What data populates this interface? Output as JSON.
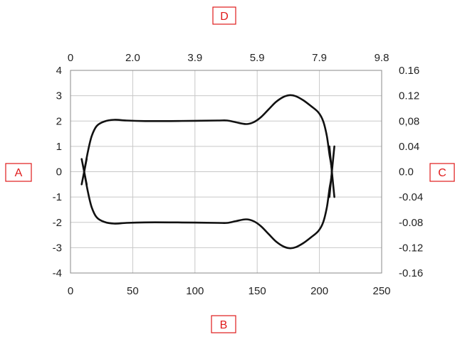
{
  "chart_data": {
    "type": "line",
    "grid": true,
    "legend": "none",
    "colors": {
      "line": "#111111",
      "grid": "#c8c8c8",
      "axis": "#888888",
      "label_box": "#e01a1a",
      "label_text": "#e01a1a"
    },
    "axis_labels": {
      "left": "A",
      "bottom": "B",
      "right": "C",
      "top": "D"
    },
    "x_bottom": {
      "range": [
        0,
        250
      ],
      "ticks": [
        "0",
        "50",
        "100",
        "150",
        "200",
        "250"
      ]
    },
    "x_top": {
      "ticks": [
        "0",
        "2.0",
        "3.9",
        "5.9",
        "7.9",
        "9.8"
      ]
    },
    "y_left": {
      "range": [
        -4,
        4
      ],
      "ticks": [
        "4",
        "3",
        "2",
        "1",
        "0",
        "-1",
        "-2",
        "-3",
        "-4"
      ]
    },
    "y_right": {
      "range": [
        -0.16,
        0.16
      ],
      "ticks": [
        "0.16",
        "0.12",
        "0,08",
        "0.04",
        "0.0",
        "-0.04",
        "-0.08",
        "-0.12",
        "-0.16"
      ]
    },
    "series": [
      {
        "points": [
          [
            11,
            0.0
          ],
          [
            14,
            0.8
          ],
          [
            17,
            1.4
          ],
          [
            21,
            1.8
          ],
          [
            27,
            1.98
          ],
          [
            35,
            2.05
          ],
          [
            45,
            2.02
          ],
          [
            60,
            2.0
          ],
          [
            80,
            2.0
          ],
          [
            100,
            2.01
          ],
          [
            118,
            2.02
          ],
          [
            126,
            2.02
          ],
          [
            133,
            1.95
          ],
          [
            141,
            1.88
          ],
          [
            147,
            1.95
          ],
          [
            153,
            2.15
          ],
          [
            159,
            2.45
          ],
          [
            165,
            2.75
          ],
          [
            171,
            2.95
          ],
          [
            176,
            3.02
          ],
          [
            181,
            2.98
          ],
          [
            187,
            2.82
          ],
          [
            193,
            2.6
          ],
          [
            199,
            2.35
          ],
          [
            203,
            2.0
          ],
          [
            206,
            1.4
          ],
          [
            208,
            0.7
          ],
          [
            210,
            0.0
          ],
          [
            208,
            -0.7
          ],
          [
            206,
            -1.4
          ],
          [
            203,
            -2.0
          ],
          [
            199,
            -2.35
          ],
          [
            193,
            -2.6
          ],
          [
            187,
            -2.82
          ],
          [
            181,
            -2.98
          ],
          [
            176,
            -3.02
          ],
          [
            171,
            -2.95
          ],
          [
            165,
            -2.75
          ],
          [
            159,
            -2.45
          ],
          [
            153,
            -2.15
          ],
          [
            147,
            -1.95
          ],
          [
            141,
            -1.88
          ],
          [
            133,
            -1.95
          ],
          [
            126,
            -2.02
          ],
          [
            118,
            -2.02
          ],
          [
            100,
            -2.01
          ],
          [
            80,
            -2.0
          ],
          [
            60,
            -2.0
          ],
          [
            45,
            -2.02
          ],
          [
            35,
            -2.05
          ],
          [
            27,
            -1.98
          ],
          [
            21,
            -1.8
          ],
          [
            17,
            -1.4
          ],
          [
            14,
            -0.8
          ],
          [
            11,
            0.0
          ]
        ]
      },
      {
        "points": [
          [
            9,
            0.5
          ],
          [
            13,
            -0.5
          ]
        ]
      },
      {
        "points": [
          [
            9,
            -0.5
          ],
          [
            13,
            0.5
          ]
        ]
      },
      {
        "points": [
          [
            208,
            -1.0
          ],
          [
            212,
            1.0
          ]
        ]
      },
      {
        "points": [
          [
            208,
            1.0
          ],
          [
            212,
            -1.0
          ]
        ]
      }
    ]
  }
}
